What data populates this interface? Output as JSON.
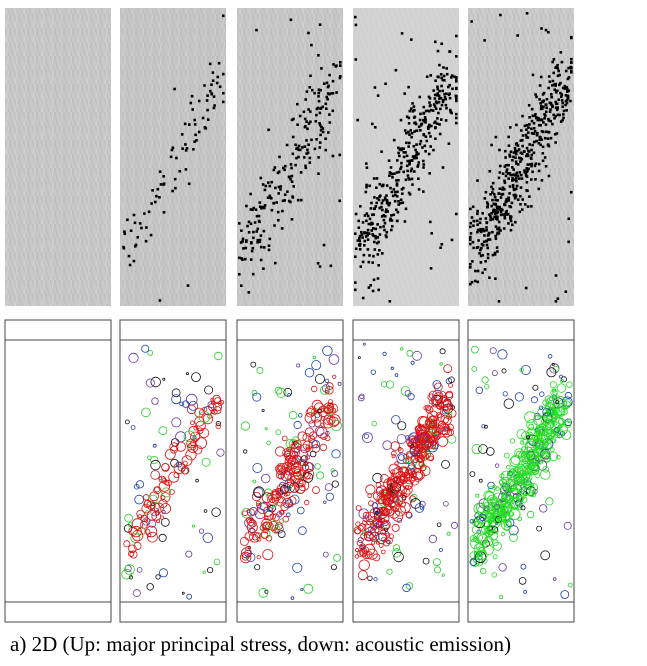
{
  "caption": "a) 2D (Up: major principal stress, down: acoustic emission)"
}
